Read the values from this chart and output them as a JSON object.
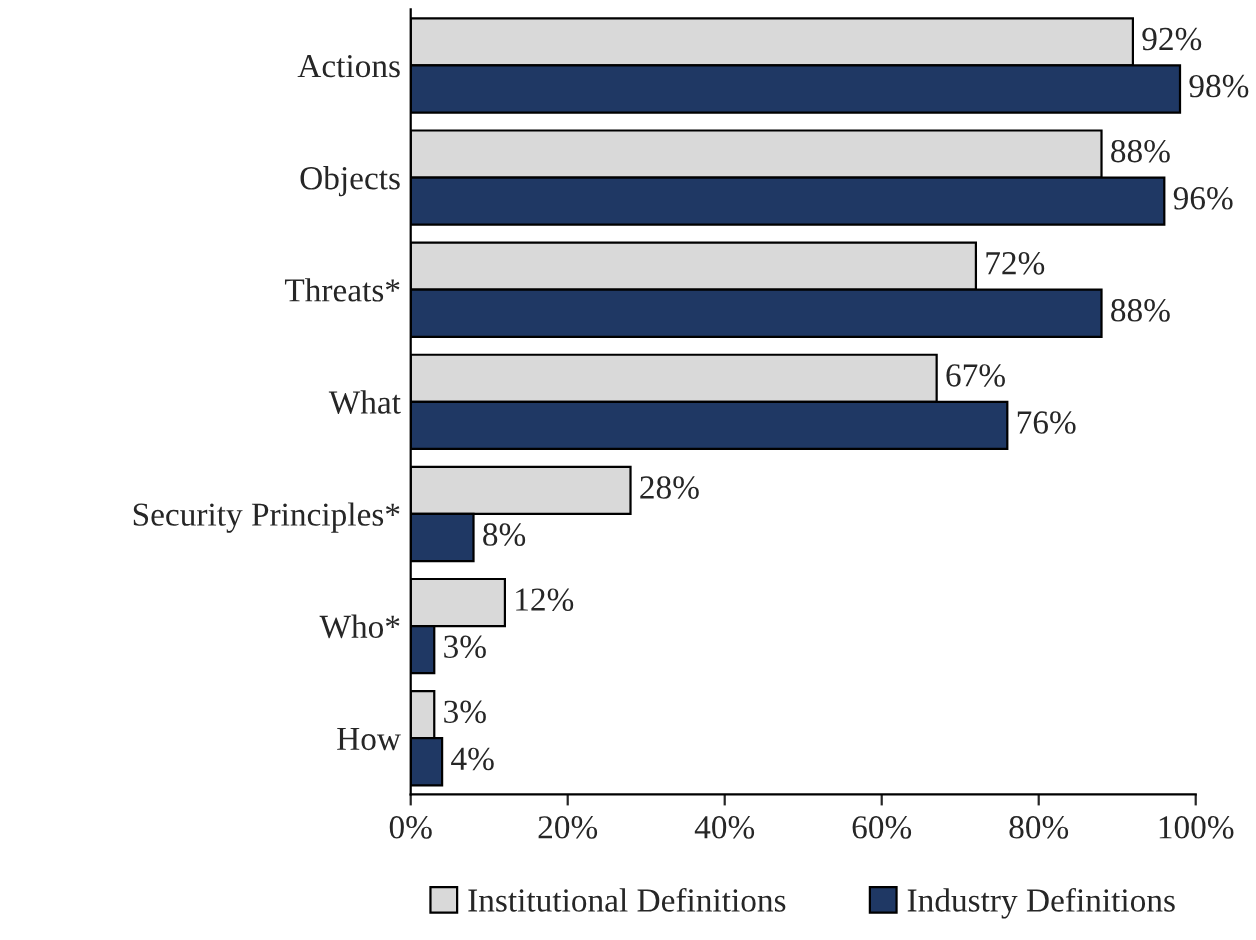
{
  "chart_data": {
    "type": "bar",
    "orientation": "horizontal",
    "categories": [
      "Actions",
      "Objects",
      "Threats*",
      "What",
      "Security Principles*",
      "Who*",
      "How"
    ],
    "series": [
      {
        "name": "Institutional Definitions",
        "color": "#d9d9d9",
        "values": [
          92,
          88,
          72,
          67,
          28,
          12,
          3
        ],
        "value_labels": [
          "92%",
          "88%",
          "72%",
          "67%",
          "28%",
          "12%",
          "3%"
        ]
      },
      {
        "name": "Industry Definitions",
        "color": "#1f3864",
        "values": [
          98,
          96,
          88,
          76,
          8,
          3,
          4
        ],
        "value_labels": [
          "98%",
          "96%",
          "88%",
          "76%",
          "8%",
          "3%",
          "4%"
        ]
      }
    ],
    "xlim": [
      0,
      100
    ],
    "xticks": [
      {
        "value": 0,
        "label": "0%"
      },
      {
        "value": 20,
        "label": "20%"
      },
      {
        "value": 40,
        "label": "40%"
      },
      {
        "value": 60,
        "label": "60%"
      },
      {
        "value": 80,
        "label": "80%"
      },
      {
        "value": 100,
        "label": "100%"
      }
    ],
    "grid": false,
    "legend": "bottom"
  }
}
